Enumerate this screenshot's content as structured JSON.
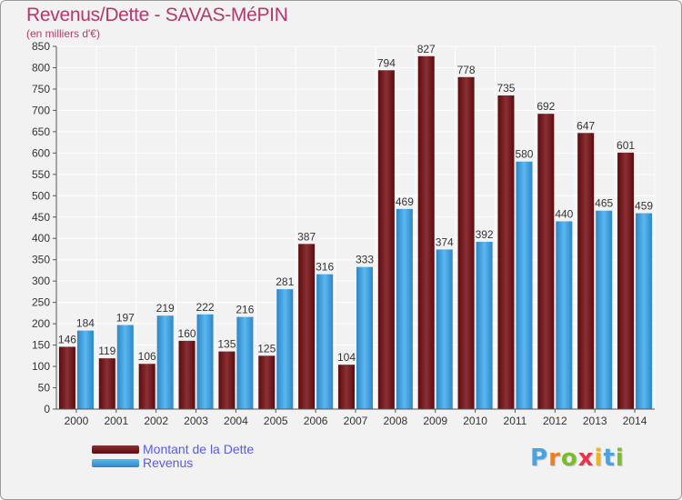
{
  "header": {
    "title": "Revenus/Dette - SAVAS-MéPIN",
    "subtitle": "(en milliers d'€)"
  },
  "legend": {
    "items": [
      {
        "label": "Montant de la Dette",
        "color": "#7b1f22"
      },
      {
        "label": "Revenus",
        "color": "#3e9ee0"
      }
    ]
  },
  "brand": {
    "letters": [
      "P",
      "r",
      "o",
      "x",
      "i",
      "t",
      "i"
    ],
    "colors": [
      "#4aa3df",
      "#f07f1e",
      "#7dbb2e",
      "#e8354d",
      "#f0b41e",
      "#4aa3df",
      "#7dbb2e"
    ]
  },
  "chart_data": {
    "type": "bar",
    "categories": [
      "2000",
      "2001",
      "2002",
      "2003",
      "2004",
      "2005",
      "2006",
      "2007",
      "2008",
      "2009",
      "2010",
      "2011",
      "2012",
      "2013",
      "2014"
    ],
    "series": [
      {
        "name": "Montant de la Dette",
        "color": "#7b1f22",
        "values": [
          146,
          119,
          106,
          160,
          135,
          125,
          387,
          104,
          794,
          827,
          778,
          735,
          692,
          647,
          601
        ]
      },
      {
        "name": "Revenus",
        "color": "#3e9ee0",
        "values": [
          184,
          197,
          219,
          222,
          216,
          281,
          316,
          333,
          469,
          374,
          392,
          580,
          440,
          465,
          459
        ]
      }
    ],
    "ylim": [
      0,
      850
    ],
    "yticks": [
      0,
      50,
      100,
      150,
      200,
      250,
      300,
      350,
      400,
      450,
      500,
      550,
      600,
      650,
      700,
      750,
      800,
      850
    ],
    "grid": true,
    "legend_position": "bottom-left"
  }
}
